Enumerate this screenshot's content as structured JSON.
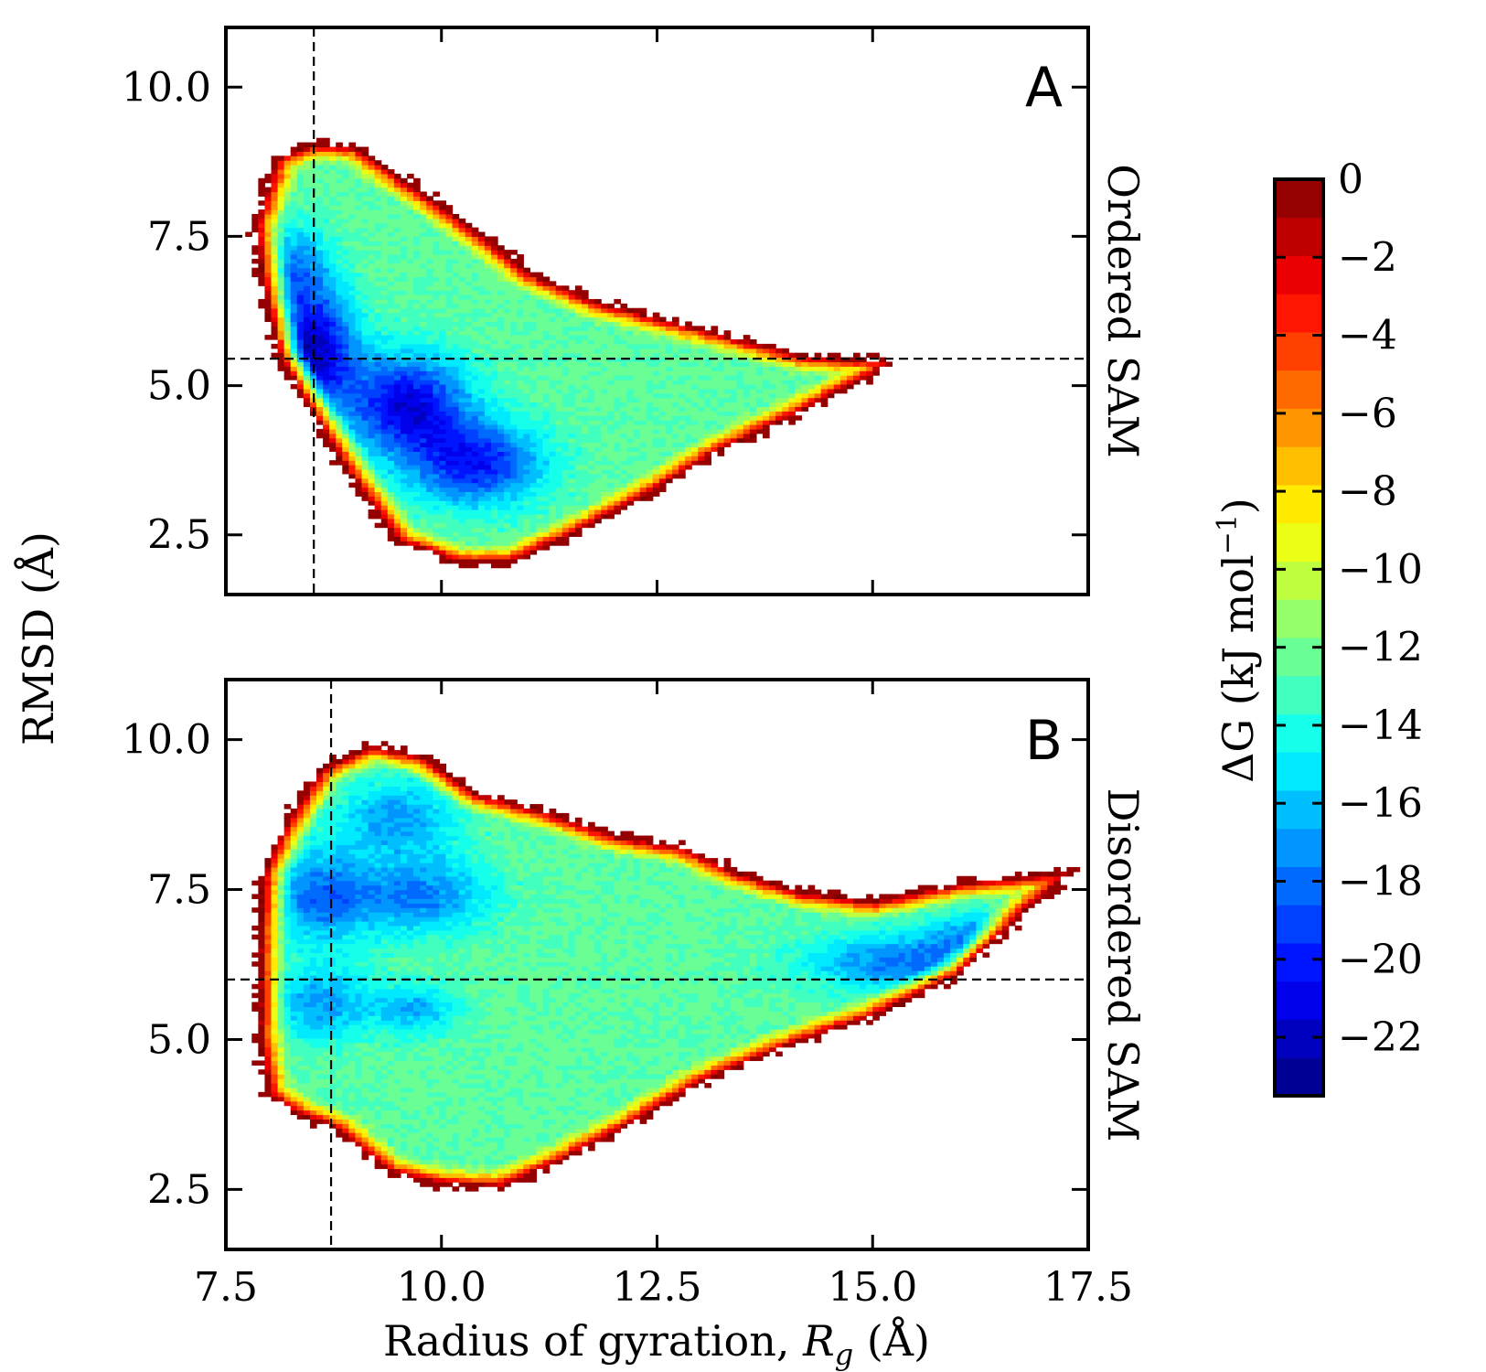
{
  "chart_data": {
    "type": "heatmap",
    "shared_xlabel": "Radius of gyration, ",
    "shared_xlabel_symbol": "R",
    "shared_xlabel_subscript": "g",
    "shared_xlabel_unit": " (Å)",
    "shared_ylabel": "RMSD (Å)",
    "xlim": [
      7.5,
      17.5
    ],
    "x_ticks": [
      "7.5",
      "10.0",
      "12.5",
      "15.0",
      "17.5"
    ],
    "y_ticks": [
      "2.5",
      "5.0",
      "7.5",
      "10.0"
    ],
    "ylim": [
      1.5,
      11.0
    ],
    "colorbar": {
      "label_prefix": "ΔG (kJ mol",
      "label_exponent": "−1",
      "label_suffix": ")",
      "range": [
        -23.5,
        0
      ],
      "ticks": [
        "0",
        "−2",
        "−4",
        "−6",
        "−8",
        "−10",
        "−12",
        "−14",
        "−16",
        "−18",
        "−20",
        "−22"
      ],
      "tick_values": [
        0,
        -2,
        -4,
        -6,
        -8,
        -10,
        -12,
        -14,
        -16,
        -18,
        -20,
        -22
      ],
      "colormap": "jet",
      "levels": 24
    },
    "panels": [
      {
        "letter": "A",
        "side_label": "Ordered SAM",
        "reference_lines": {
          "x": 8.52,
          "y": 5.45
        },
        "minima": [
          {
            "x": 8.5,
            "y": 5.6,
            "sx": 0.35,
            "sy": 0.7,
            "depth": -22
          },
          {
            "x": 9.6,
            "y": 4.7,
            "sx": 0.5,
            "sy": 0.6,
            "depth": -21
          },
          {
            "x": 10.4,
            "y": 3.7,
            "sx": 0.55,
            "sy": 0.5,
            "depth": -20
          },
          {
            "x": 8.3,
            "y": 7.0,
            "sx": 0.3,
            "sy": 0.5,
            "depth": -17
          }
        ],
        "envelope": [
          [
            7.85,
            7.7
          ],
          [
            8.1,
            8.8
          ],
          [
            8.5,
            9.05
          ],
          [
            9.0,
            9.0
          ],
          [
            9.6,
            8.4
          ],
          [
            10.3,
            7.7
          ],
          [
            11.0,
            6.9
          ],
          [
            11.8,
            6.4
          ],
          [
            12.6,
            6.1
          ],
          [
            13.4,
            5.8
          ],
          [
            14.2,
            5.5
          ],
          [
            15.2,
            5.4
          ],
          [
            15.0,
            5.2
          ],
          [
            14.2,
            4.6
          ],
          [
            13.2,
            3.9
          ],
          [
            12.4,
            3.2
          ],
          [
            11.5,
            2.5
          ],
          [
            10.8,
            2.05
          ],
          [
            10.2,
            2.05
          ],
          [
            9.5,
            2.4
          ],
          [
            8.9,
            3.6
          ],
          [
            8.4,
            4.8
          ],
          [
            8.1,
            5.6
          ],
          [
            7.95,
            6.6
          ]
        ]
      },
      {
        "letter": "B",
        "side_label": "Disordered SAM",
        "reference_lines": {
          "x": 8.72,
          "y": 6.0
        },
        "minima": [
          {
            "x": 8.6,
            "y": 7.4,
            "sx": 0.45,
            "sy": 0.55,
            "depth": -18
          },
          {
            "x": 9.8,
            "y": 7.4,
            "sx": 0.55,
            "sy": 0.45,
            "depth": -17.5
          },
          {
            "x": 9.5,
            "y": 8.7,
            "sx": 0.5,
            "sy": 0.45,
            "depth": -17
          },
          {
            "x": 8.6,
            "y": 5.6,
            "sx": 0.4,
            "sy": 0.45,
            "depth": -17
          },
          {
            "x": 9.7,
            "y": 5.5,
            "sx": 0.35,
            "sy": 0.3,
            "depth": -16.5
          },
          {
            "x": 15.5,
            "y": 6.3,
            "sx": 0.9,
            "sy": 0.35,
            "depth": -18
          },
          {
            "x": 16.2,
            "y": 6.8,
            "sx": 0.35,
            "sy": 0.25,
            "depth": -16
          }
        ],
        "envelope": [
          [
            7.95,
            7.8
          ],
          [
            8.2,
            8.6
          ],
          [
            8.6,
            9.5
          ],
          [
            9.2,
            9.9
          ],
          [
            9.8,
            9.7
          ],
          [
            10.4,
            9.1
          ],
          [
            11.2,
            8.8
          ],
          [
            12.0,
            8.4
          ],
          [
            12.8,
            8.2
          ],
          [
            13.4,
            7.8
          ],
          [
            14.2,
            7.45
          ],
          [
            15.0,
            7.3
          ],
          [
            16.0,
            7.6
          ],
          [
            16.7,
            7.7
          ],
          [
            17.3,
            7.8
          ],
          [
            16.8,
            7.2
          ],
          [
            16.0,
            6.1
          ],
          [
            15.0,
            5.4
          ],
          [
            14.0,
            4.9
          ],
          [
            13.0,
            4.3
          ],
          [
            12.2,
            3.6
          ],
          [
            11.4,
            3.0
          ],
          [
            10.7,
            2.55
          ],
          [
            10.0,
            2.6
          ],
          [
            9.4,
            2.8
          ],
          [
            8.8,
            3.5
          ],
          [
            8.3,
            3.8
          ],
          [
            8.0,
            4.1
          ],
          [
            7.9,
            5.0
          ],
          [
            7.9,
            6.5
          ]
        ]
      }
    ]
  }
}
